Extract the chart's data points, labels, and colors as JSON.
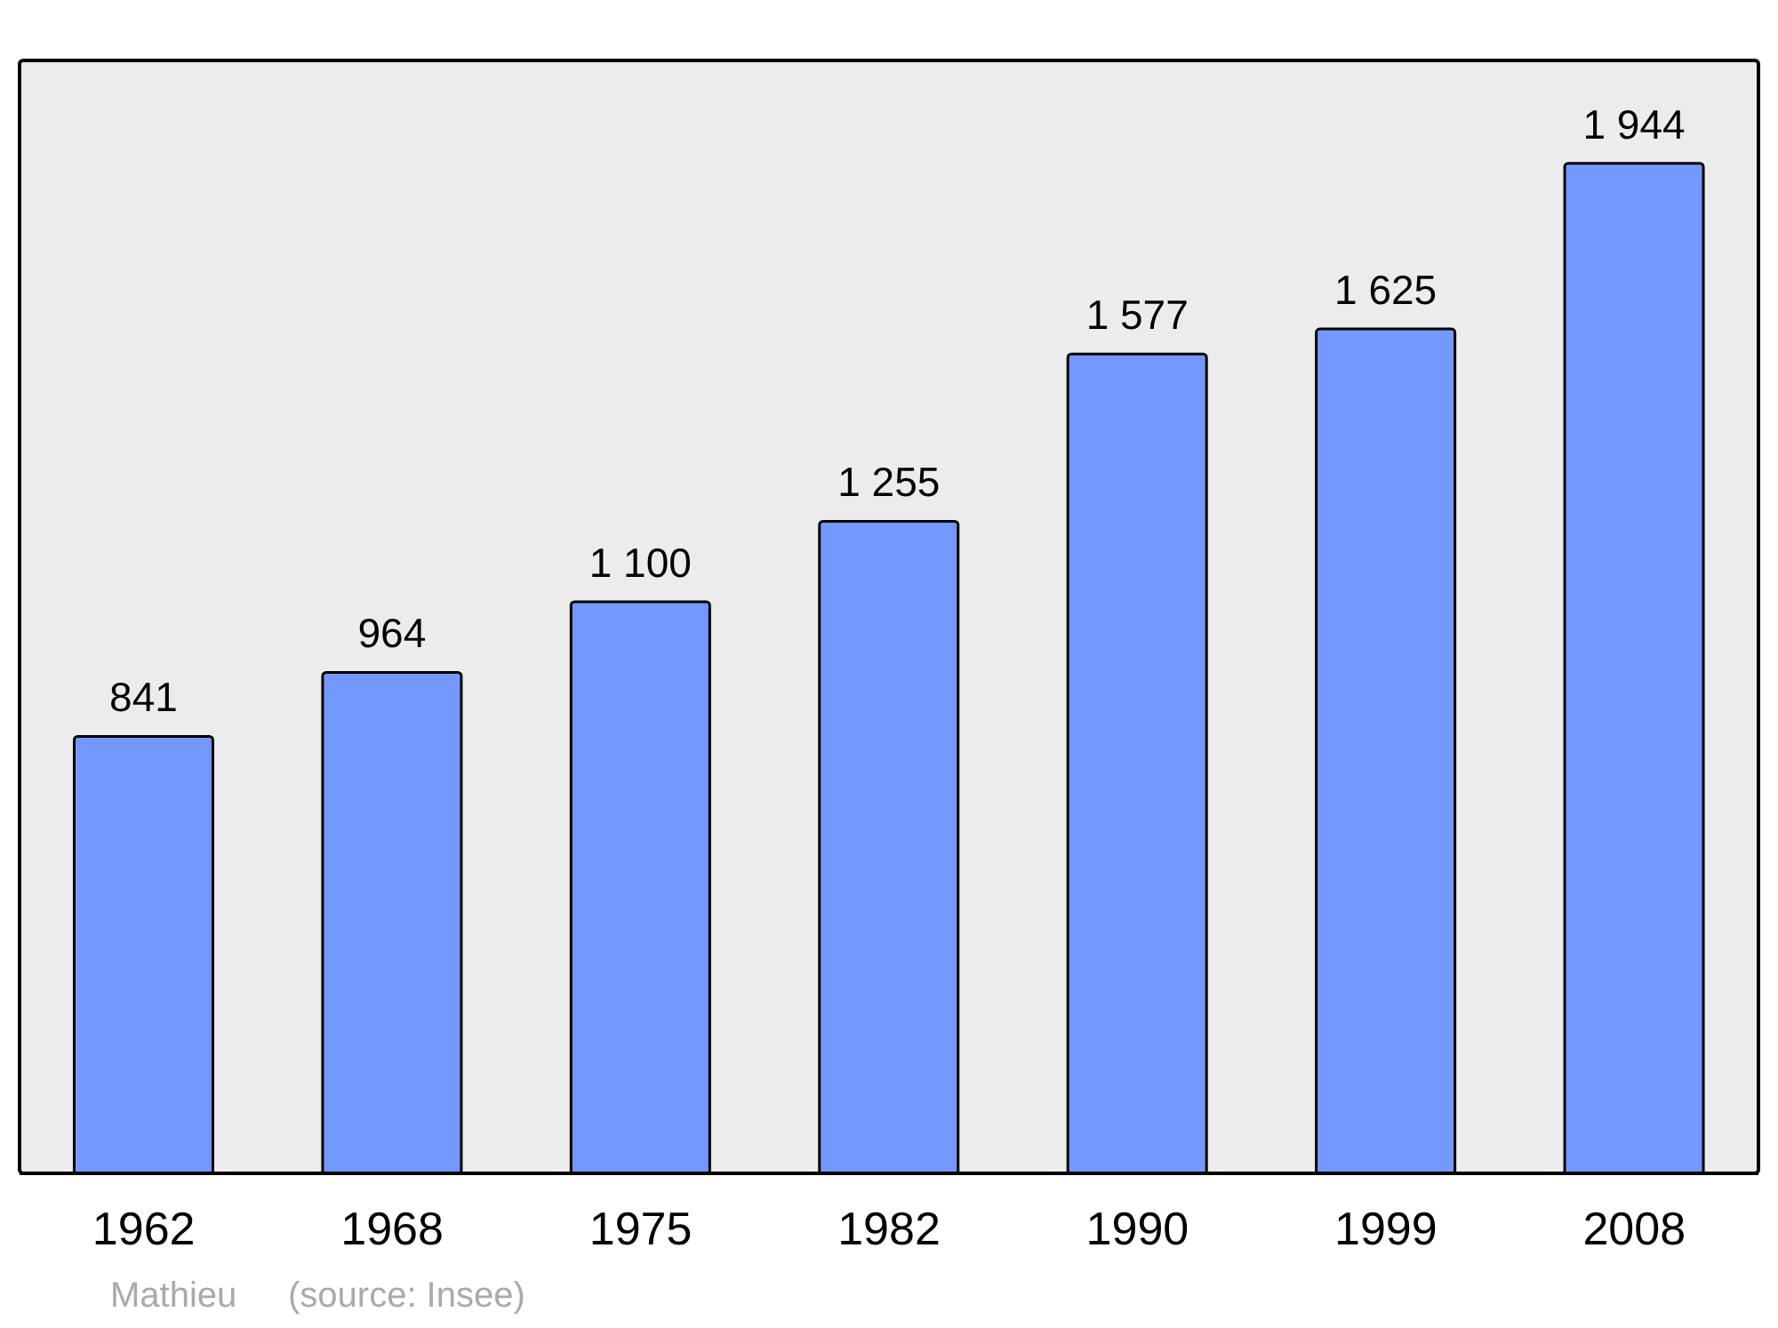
{
  "chart_data": {
    "type": "bar",
    "categories": [
      "1962",
      "1968",
      "1975",
      "1982",
      "1990",
      "1999",
      "2008"
    ],
    "values": [
      841,
      964,
      1100,
      1255,
      1577,
      1625,
      1944
    ],
    "value_labels": [
      "841",
      "964",
      "1 100",
      "1 255",
      "1 577",
      "1 625",
      "1 944"
    ],
    "color": "#7399ff",
    "grid": false,
    "legend": false,
    "annotations": [
      "Mathieu",
      "(source: Insee)"
    ]
  }
}
